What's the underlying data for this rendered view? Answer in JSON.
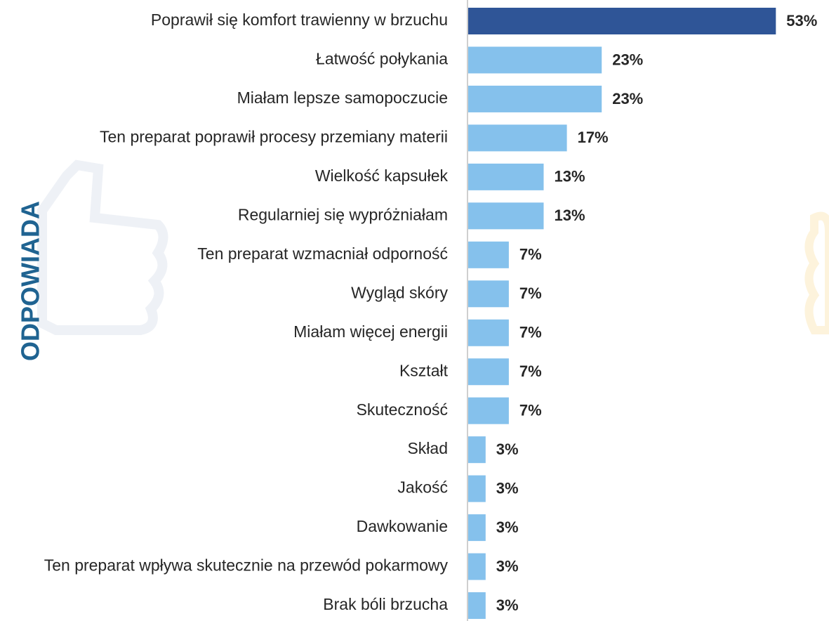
{
  "chart_data": {
    "type": "barh",
    "side_label": "ODPOWIADA",
    "categories": [
      "Poprawił się komfort trawienny w brzuchu",
      "Łatwość połykania",
      "Miałam lepsze samopoczucie",
      "Ten preparat poprawił procesy przemiany materii",
      "Wielkość kapsułek",
      "Regularniej się wypróżniałam",
      "Ten preparat wzmacniał odporność",
      "Wygląd skóry",
      "Miałam więcej energii",
      "Kształt",
      "Skuteczność",
      "Skład",
      "Jakość",
      "Dawkowanie",
      "Ten preparat wpływa skutecznie na przewód pokarmowy",
      "Brak bóli brzucha"
    ],
    "values": [
      53,
      23,
      23,
      17,
      13,
      13,
      7,
      7,
      7,
      7,
      7,
      3,
      3,
      3,
      3,
      3
    ],
    "value_labels": [
      "53%",
      "23%",
      "23%",
      "17%",
      "13%",
      "13%",
      "7%",
      "7%",
      "7%",
      "7%",
      "7%",
      "3%",
      "3%",
      "3%",
      "3%",
      "3%"
    ],
    "colors": [
      "#2f5597",
      "#85c1ec",
      "#85c1ec",
      "#85c1ec",
      "#85c1ec",
      "#85c1ec",
      "#85c1ec",
      "#85c1ec",
      "#85c1ec",
      "#85c1ec",
      "#85c1ec",
      "#85c1ec",
      "#85c1ec",
      "#85c1ec",
      "#85c1ec",
      "#85c1ec"
    ]
  }
}
